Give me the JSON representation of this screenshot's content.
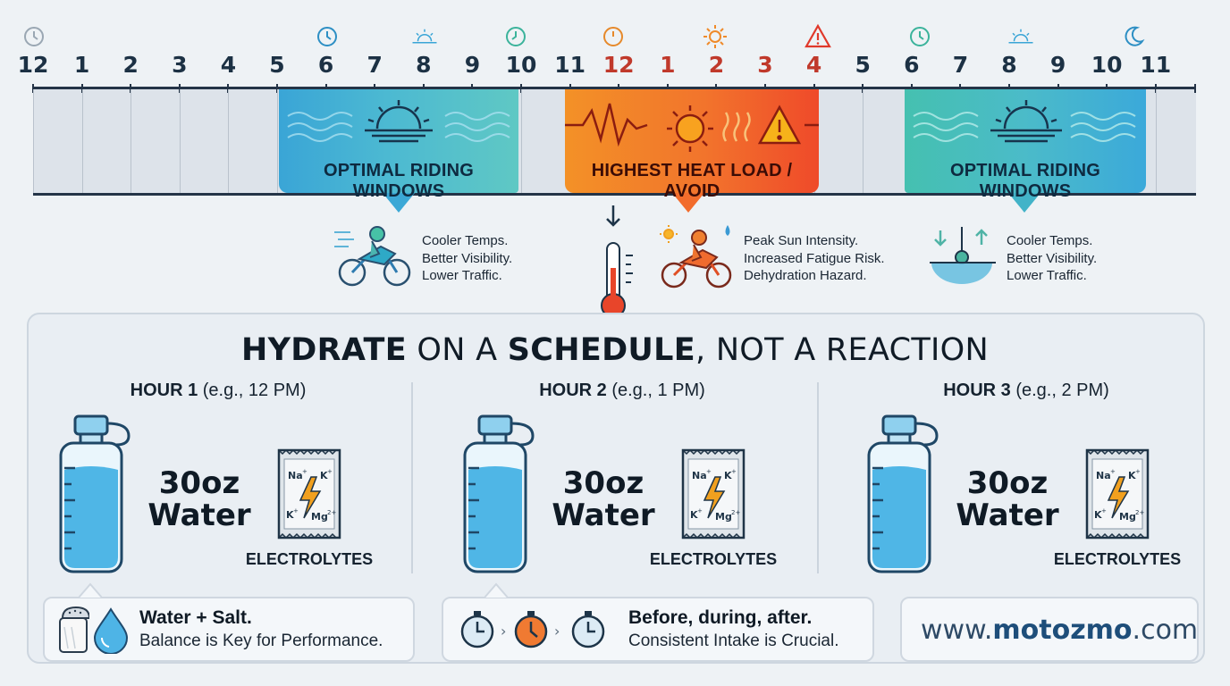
{
  "timeline": {
    "hours": [
      "12",
      "1",
      "2",
      "3",
      "4",
      "5",
      "6",
      "7",
      "8",
      "9",
      "10",
      "11",
      "12",
      "1",
      "2",
      "3",
      "4",
      "5",
      "6",
      "7",
      "8",
      "9",
      "10",
      "11"
    ],
    "hour_colors": {
      "normal": "#1c3144",
      "hot": "#c0392b"
    },
    "top_icons": [
      "clock-icon",
      "clock-icon",
      "sunrise-icon",
      "clock-icon",
      "clock-icon",
      "sun-icon",
      "warning-icon",
      "clock-icon",
      "sunset-icon",
      "moon-icon"
    ],
    "bands": {
      "morning_label": "OPTIMAL RIDING WINDOWS",
      "midday_label": "HIGHEST HEAT LOAD / AVOID",
      "evening_label": "OPTIMAL RIDING WINDOWS"
    },
    "colors": {
      "cool": "#3aa5d6",
      "teal": "#45c0b0",
      "hot": "#ef4a2a",
      "orange": "#f39127"
    }
  },
  "notes": {
    "morning": [
      "Cooler Temps.",
      "Better Visibility.",
      "Lower Traffic."
    ],
    "midday": [
      "Peak Sun Intensity.",
      "Increased Fatigue Risk.",
      "Dehydration Hazard."
    ],
    "evening": [
      "Cooler Temps.",
      "Better Visibility.",
      "Lower Traffic."
    ]
  },
  "panel": {
    "headline": {
      "w1": "HYDRATE",
      "w2": " ON A ",
      "w3": "SCHEDULE",
      "w4": ", NOT A REACTION"
    },
    "hours": [
      {
        "title": "HOUR 1",
        "hint": " (e.g., 12 PM)",
        "amount": "30oz",
        "unit": "Water",
        "electrolytes": "ELECTROLYTES"
      },
      {
        "title": "HOUR 2",
        "hint": " (e.g., 1 PM)",
        "amount": "30oz",
        "unit": "Water",
        "electrolytes": "ELECTROLYTES"
      },
      {
        "title": "HOUR 3",
        "hint": " (e.g., 2 PM)",
        "amount": "30oz",
        "unit": "Water",
        "electrolytes": "ELECTROLYTES"
      }
    ],
    "packet": {
      "na": "Na",
      "k": "K",
      "mg": "Mg"
    },
    "cards": {
      "salt_title": "Water + Salt.",
      "salt_sub": "Balance is Key for Performance.",
      "timing_title": "Before, during, after.",
      "timing_sub": "Consistent Intake is Crucial.",
      "url_pre": "www.",
      "url_brand": "motozmo",
      "url_post": ".com"
    }
  }
}
